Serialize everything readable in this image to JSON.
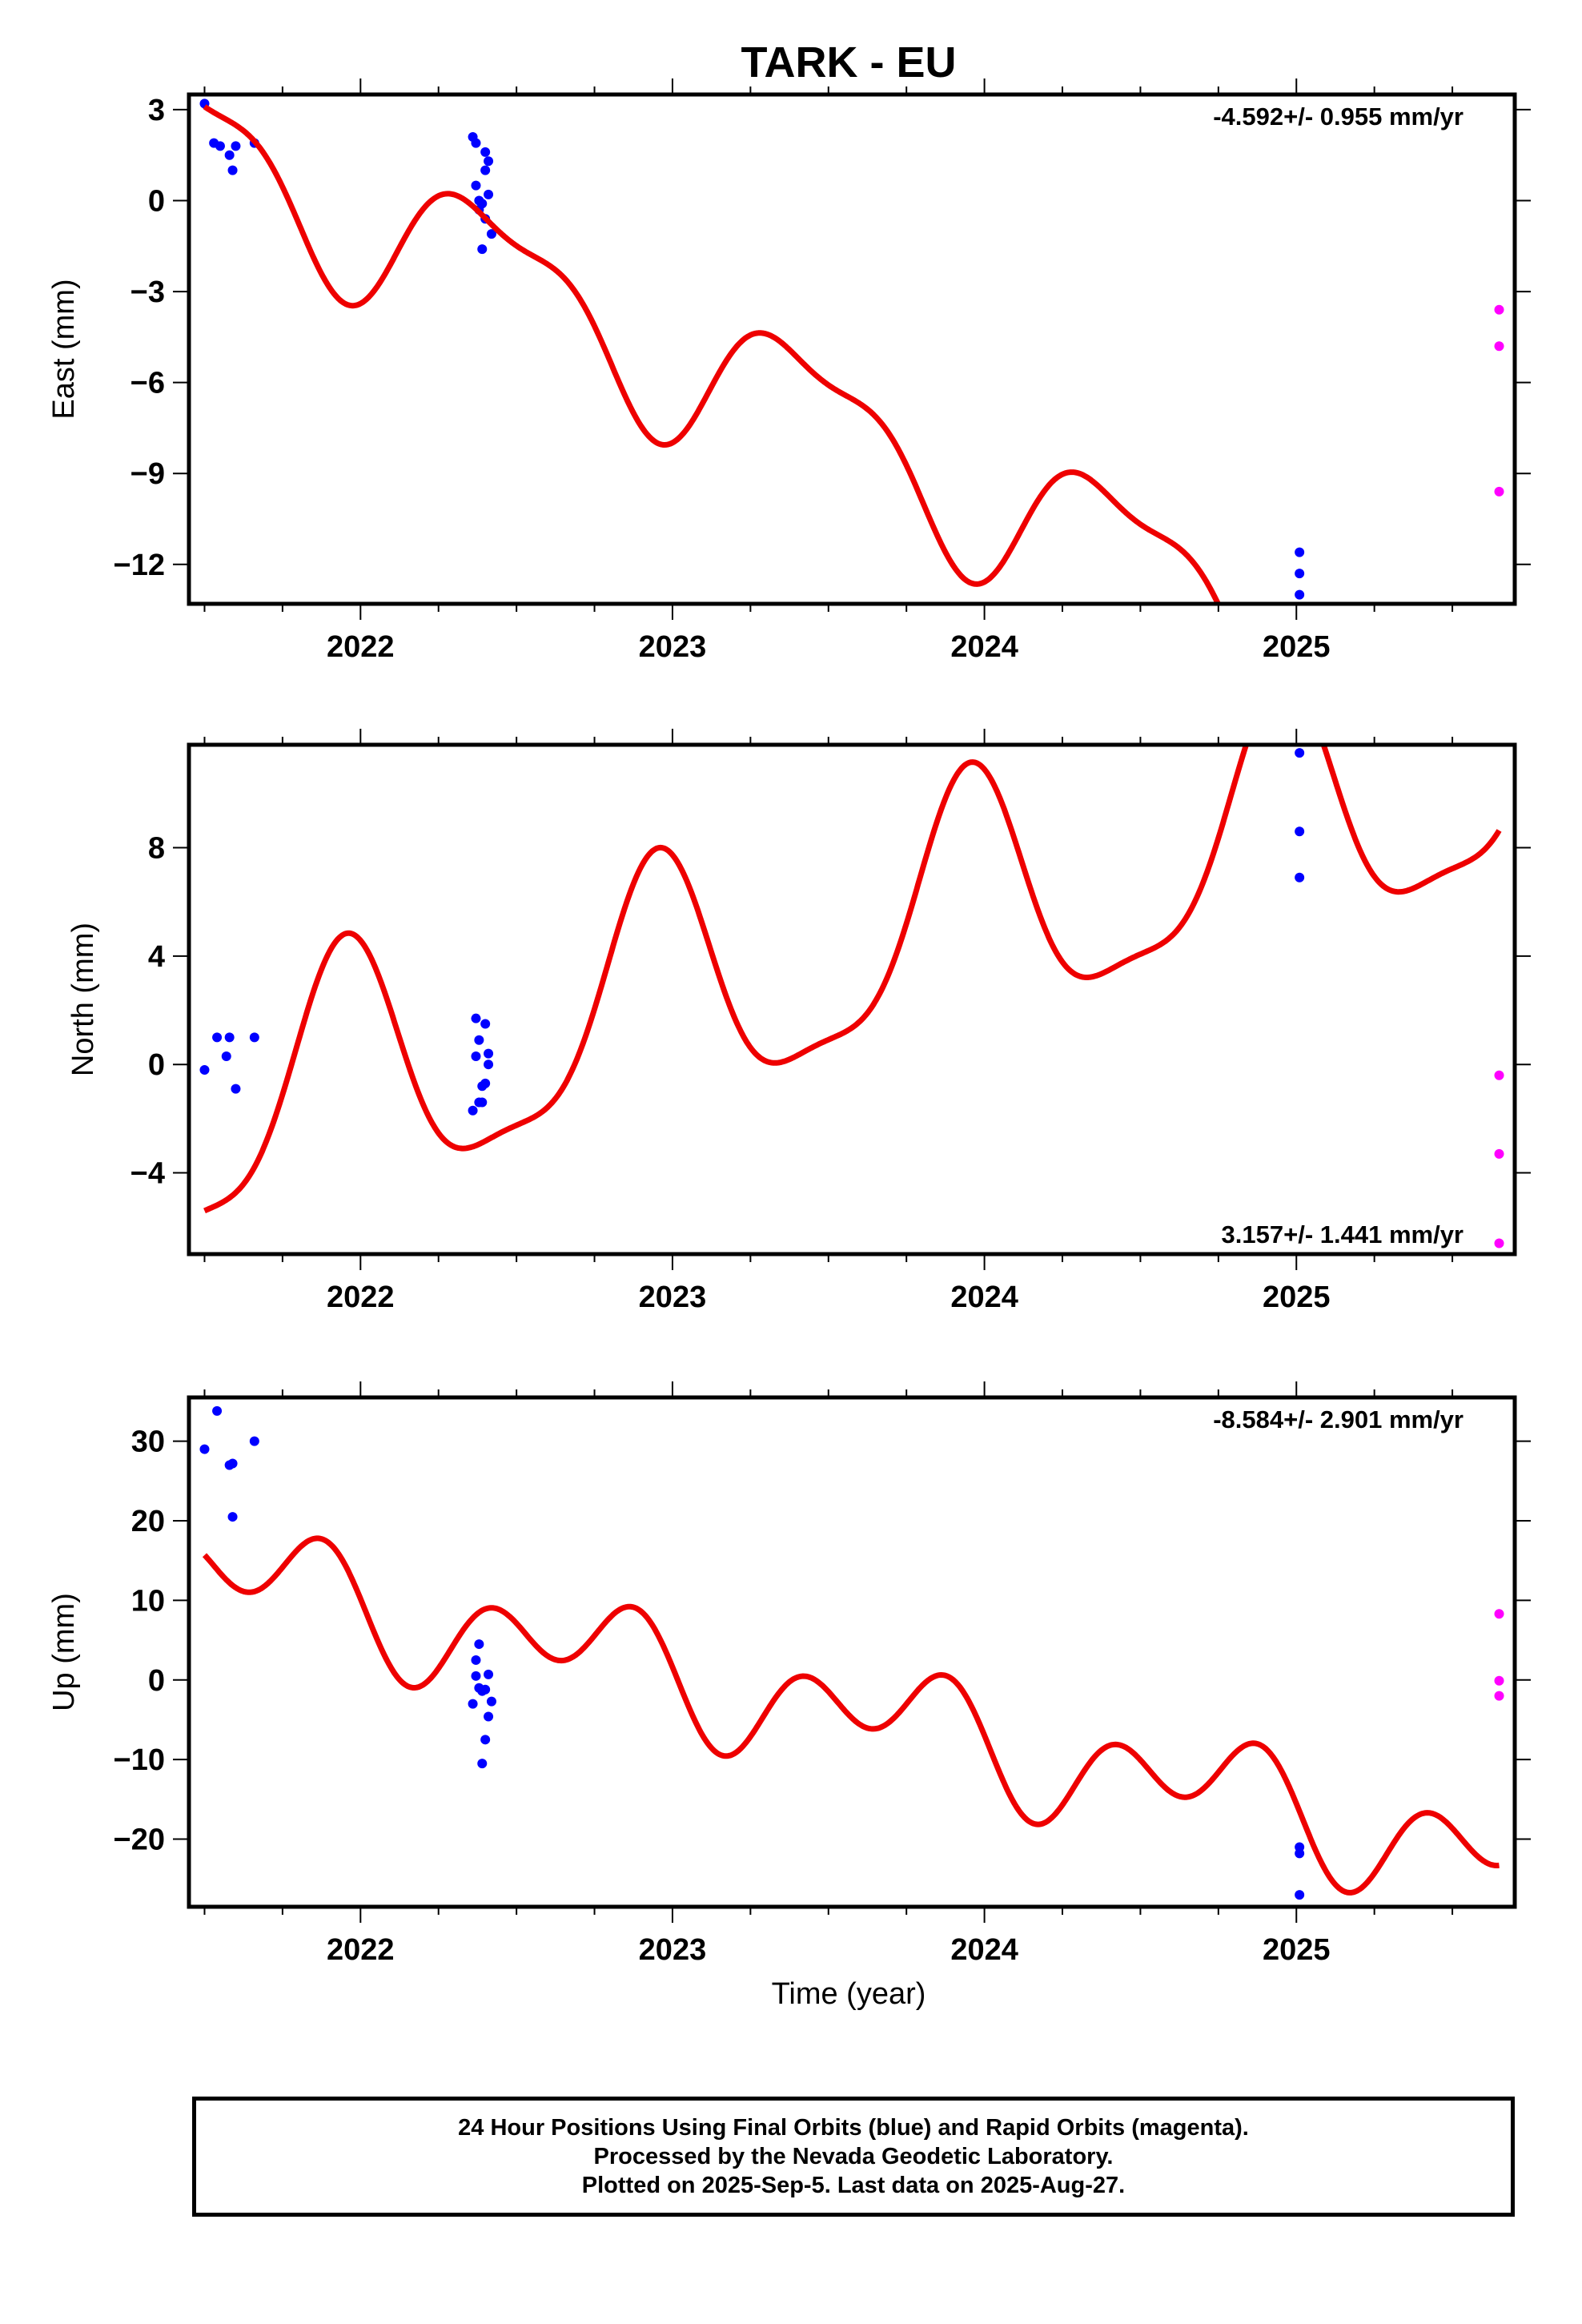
{
  "chart_data": [
    {
      "type": "scatter",
      "title": "TARK - EU",
      "ylabel": "East (mm)",
      "xlabel": "",
      "xlim": [
        2021.45,
        2025.7
      ],
      "ylim": [
        -13.3,
        3.5
      ],
      "yticks": [
        3,
        0,
        -3,
        -6,
        -9,
        -12
      ],
      "yticklabels": [
        "3",
        "0",
        "−3",
        "−6",
        "−9",
        "−12"
      ],
      "xticks": [
        2022,
        2023,
        2024,
        2025
      ],
      "xticklabels": [
        "2022",
        "2023",
        "2024",
        "2025"
      ],
      "annotation": "-4.592+/- 0.955 mm/yr",
      "annotation_position": "top-right",
      "grid": false,
      "series": [
        {
          "color": "#0000ff",
          "x": [
            2021.5,
            2021.53,
            2021.55,
            2021.58,
            2021.59,
            2021.6,
            2021.66,
            2022.36,
            2022.37,
            2022.37,
            2022.38,
            2022.38,
            2022.39,
            2022.39,
            2022.4,
            2022.4,
            2022.4,
            2022.41,
            2022.41,
            2022.42,
            2025.01,
            2025.01,
            2025.01
          ],
          "y": [
            3.2,
            1.9,
            1.8,
            1.5,
            1.0,
            1.8,
            1.9,
            2.1,
            1.9,
            0.5,
            0.0,
            -0.3,
            -1.6,
            -0.1,
            1.0,
            1.6,
            -0.6,
            1.3,
            0.2,
            -1.1,
            -11.6,
            -12.3,
            -13.0
          ]
        },
        {
          "color": "#ff00ff",
          "x": [
            2025.65,
            2025.65,
            2025.65
          ],
          "y": [
            -3.6,
            -4.8,
            -9.6
          ]
        },
        {
          "color": "#ee0000",
          "type": "line",
          "model": {
            "t0": 2021.5,
            "offset": 1.8,
            "rate": -4.592,
            "annual_cos": 2.1,
            "annual_sin": -1.0,
            "semi_cos": -0.8,
            "semi_sin": 0.3
          }
        }
      ]
    },
    {
      "type": "scatter",
      "title": "",
      "ylabel": "North (mm)",
      "xlabel": "",
      "xlim": [
        2021.45,
        2025.7
      ],
      "ylim": [
        -7,
        11.8
      ],
      "yticks": [
        8,
        4,
        0,
        -4
      ],
      "yticklabels": [
        "8",
        "4",
        "0",
        "−4"
      ],
      "xticks": [
        2022,
        2023,
        2024,
        2025
      ],
      "xticklabels": [
        "2022",
        "2023",
        "2024",
        "2025"
      ],
      "annotation": "3.157+/- 1.441 mm/yr",
      "annotation_position": "bottom-right",
      "grid": false,
      "series": [
        {
          "color": "#0000ff",
          "x": [
            2021.5,
            2021.54,
            2021.57,
            2021.58,
            2021.6,
            2021.66,
            2022.36,
            2022.37,
            2022.37,
            2022.38,
            2022.38,
            2022.39,
            2022.39,
            2022.4,
            2022.4,
            2022.41,
            2022.41,
            2025.01,
            2025.01,
            2025.01
          ],
          "y": [
            -0.2,
            1.0,
            0.3,
            1.0,
            -0.9,
            1.0,
            -1.7,
            0.3,
            1.7,
            -1.4,
            0.9,
            -0.8,
            -1.4,
            1.5,
            -0.7,
            0.0,
            0.4,
            11.5,
            8.6,
            6.9
          ]
        },
        {
          "color": "#ff00ff",
          "x": [
            2025.65,
            2025.65,
            2025.65
          ],
          "y": [
            -0.4,
            -3.3,
            -6.6
          ]
        },
        {
          "color": "#ee0000",
          "type": "line",
          "model": {
            "t0": 2021.5,
            "offset": -2.3,
            "rate": 3.157,
            "annual_cos": -4.2,
            "annual_sin": 1.5,
            "semi_cos": 1.1,
            "semi_sin": -0.6
          }
        }
      ]
    },
    {
      "type": "scatter",
      "title": "",
      "ylabel": "Up (mm)",
      "xlabel": "Time (year)",
      "xlim": [
        2021.45,
        2025.7
      ],
      "ylim": [
        -28.5,
        35.5
      ],
      "yticks": [
        30,
        20,
        10,
        0,
        -10,
        -20
      ],
      "yticklabels": [
        "30",
        "20",
        "10",
        "0",
        "−10",
        "−20"
      ],
      "xticks": [
        2022,
        2023,
        2024,
        2025
      ],
      "xticklabels": [
        "2022",
        "2023",
        "2024",
        "2025"
      ],
      "annotation": "-8.584+/- 2.901 mm/yr",
      "annotation_position": "top-right",
      "grid": false,
      "series": [
        {
          "color": "#0000ff",
          "x": [
            2021.5,
            2021.54,
            2021.58,
            2021.59,
            2021.59,
            2021.66,
            2022.36,
            2022.37,
            2022.37,
            2022.38,
            2022.38,
            2022.39,
            2022.39,
            2022.4,
            2022.4,
            2022.41,
            2022.41,
            2022.42,
            2025.01,
            2025.01,
            2025.01
          ],
          "y": [
            29.0,
            33.8,
            27.0,
            27.2,
            20.5,
            30.0,
            -3.0,
            0.5,
            2.5,
            -1.0,
            4.5,
            -1.4,
            -10.5,
            -1.2,
            -7.5,
            0.7,
            -4.6,
            -2.7,
            -21.0,
            -21.8,
            -27.0
          ]
        },
        {
          "color": "#ff00ff",
          "x": [
            2025.65,
            2025.65,
            2025.65
          ],
          "y": [
            8.3,
            -0.1,
            -2.0
          ]
        },
        {
          "color": "#ee0000",
          "type": "line",
          "model": {
            "t0": 2021.5,
            "offset": 13.6,
            "rate": -8.584,
            "annual_cos": 0.6,
            "annual_sin": 4.2,
            "semi_cos": 1.5,
            "semi_sin": -4.8
          }
        }
      ]
    }
  ],
  "footer": {
    "line1": "24 Hour Positions Using Final Orbits (blue) and Rapid Orbits (magenta).",
    "line2": "Processed by the Nevada Geodetic Laboratory.",
    "line3": "Plotted on 2025-Sep-5. Last data on 2025-Aug-27."
  }
}
